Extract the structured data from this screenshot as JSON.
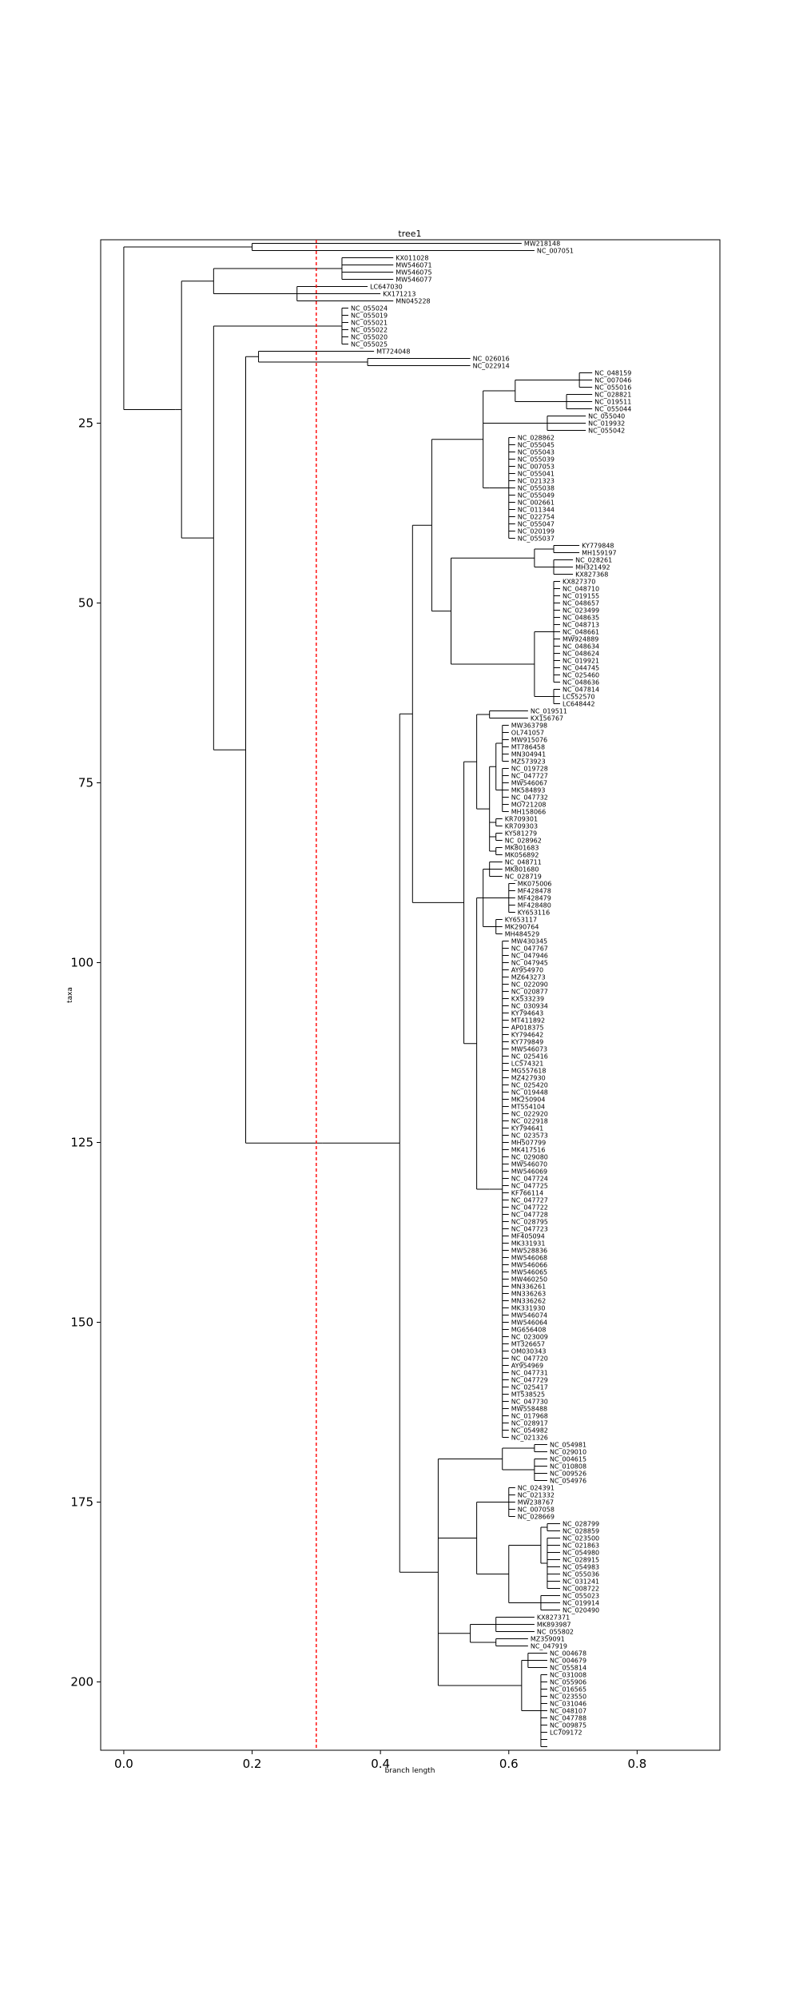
{
  "chart_data": {
    "type": "dendrogram",
    "title": "tree1",
    "xlabel": "branch length",
    "ylabel": "taxa",
    "xlim": [
      -0.036,
      0.929
    ],
    "ylim": [
      209.5,
      -0.5
    ],
    "x_ticks": [
      "0.0",
      "0.2",
      "0.4",
      "0.6",
      "0.8"
    ],
    "x_tick_values": [
      0.0,
      0.2,
      0.4,
      0.6,
      0.8
    ],
    "y_ticks": [
      "25",
      "50",
      "75",
      "100",
      "125",
      "150",
      "175",
      "200"
    ],
    "y_tick_values": [
      25,
      50,
      75,
      100,
      125,
      150,
      175,
      200
    ],
    "threshold": {
      "value": 0.3,
      "color": "#ff0000",
      "style": "dashed"
    },
    "line_color": "#000000",
    "leaves": [
      "MW218148",
      "NC_007051",
      "KX011028",
      "MW546071",
      "MW546075",
      "MW546077",
      "LC647030",
      "KX171213",
      "MN045228",
      "NC_055024",
      "NC_055019",
      "NC_055021",
      "NC_055022",
      "NC_055020",
      "NC_055025",
      "MT724048",
      "NC_026016",
      "NC_022914",
      "NC_048159",
      "NC_007046",
      "NC_055016",
      "NC_028821",
      "NC_019511",
      "NC_055044",
      "NC_055040",
      "NC_019932",
      "NC_055042",
      "NC_028862",
      "NC_055045",
      "NC_055043",
      "NC_055039",
      "NC_007053",
      "NC_055041",
      "NC_021323",
      "NC_055038",
      "NC_055049",
      "NC_002661",
      "NC_011344",
      "NC_022754",
      "NC_055047",
      "NC_020199",
      "NC_055037",
      "KY779848",
      "MH159197",
      "NC_028261",
      "MH321492",
      "KX827368",
      "KX827370",
      "NC_048710",
      "NC_019155",
      "NC_048657",
      "NC_023499",
      "NC_048635",
      "NC_048713",
      "NC_048661",
      "MW924889",
      "NC_048634",
      "NC_048624",
      "NC_019921",
      "NC_044745",
      "NC_025460",
      "NC_048636",
      "NC_047814",
      "LC552570",
      "LC648442",
      "NC_019511",
      "KX156767",
      "MW363798",
      "OL741057",
      "MW915076",
      "MT786458",
      "MN304941",
      "MZ573923",
      "NC_019728",
      "NC_047727",
      "MW546067",
      "MK584893",
      "NC_047732",
      "MO721208",
      "MH158066",
      "KR709301",
      "KR709303",
      "KY581279",
      "NC_028962",
      "MK801683",
      "MK056892",
      "NC_048711",
      "MK801680",
      "NC_028719",
      "MK075006",
      "MF428478",
      "MF428479",
      "MF428480",
      "KY653116",
      "KY653117",
      "MK290764",
      "MH484529",
      "MW430345",
      "NC_047767",
      "NC_047946",
      "NC_047945",
      "AY954970",
      "MZ643273",
      "NC_022090",
      "NC_020877",
      "KX533239",
      "NC_030934",
      "KY794643",
      "MT411892",
      "AP018375",
      "KY794642",
      "KY779849",
      "MW546073",
      "NC_025416",
      "LC574321",
      "MG557618",
      "MZ427930",
      "NC_025420",
      "NC_019448",
      "MK250904",
      "MT554104",
      "NC_022920",
      "NC_022918",
      "KY794641",
      "NC_023573",
      "MH507799",
      "MK417516",
      "NC_029080",
      "MW546070",
      "MW546069",
      "NC_047724",
      "NC_047725",
      "KF766114",
      "NC_047727",
      "NC_047722",
      "NC_047728",
      "NC_028795",
      "NC_047723",
      "MF405094",
      "MK331931",
      "MW528836",
      "MW546068",
      "MW546066",
      "MW546065",
      "MW460250",
      "MN336261",
      "MN336263",
      "MN336262",
      "MK331930",
      "MW546074",
      "MW546064",
      "MG656408",
      "NC_023009",
      "MT326657",
      "OM030343",
      "NC_047720",
      "AY954969",
      "NC_047731",
      "NC_047729",
      "NC_025417",
      "MT538525",
      "NC_047730",
      "MW558488",
      "NC_017968",
      "NC_028917",
      "NC_054982",
      "NC_021326",
      "NC_054981",
      "NC_029010",
      "NC_004615",
      "NC_010808",
      "NC_009526",
      "NC_054976",
      "NC_024391",
      "NC_021332",
      "MW238767",
      "NC_007058",
      "NC_028669",
      "NC_028799",
      "NC_028859",
      "NC_023500",
      "NC_021863",
      "NC_054980",
      "NC_028915",
      "NC_054983",
      "NC_055036",
      "NC_031241",
      "NC_008722",
      "NC_055023",
      "NC_019914",
      "NC_020490",
      "KX827371",
      "MK893987",
      "NC_055802",
      "MZ359091",
      "NC_047919",
      "NC_004678",
      "NC_004679",
      "NC_055814",
      "NC_031008",
      "NC_055906",
      "NC_016565",
      "NC_023550",
      "NC_031046",
      "NC_048107",
      "NC_047788",
      "NC_009875",
      "LC709172"
    ]
  }
}
